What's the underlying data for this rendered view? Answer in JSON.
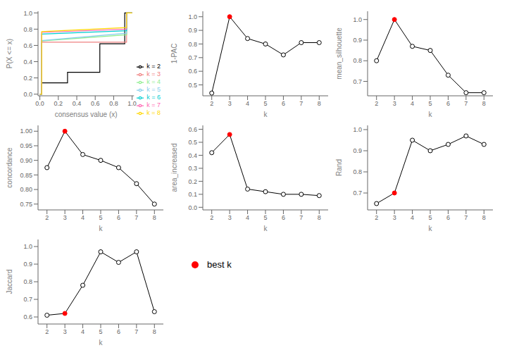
{
  "chart_data": [
    {
      "type": "line",
      "x_label": "consensus value (x)",
      "y_label": "P(X <= x)",
      "xlim": [
        -0.02,
        1.02
      ],
      "ylim": [
        -0.02,
        1.02
      ],
      "xticks": [
        {
          "value": 0,
          "label": "0.0"
        },
        0.2,
        0.4,
        0.6,
        0.8,
        {
          "value": 1,
          "label": "1.0"
        }
      ],
      "yticks": [
        {
          "value": 0,
          "label": "0.0"
        },
        0.2,
        0.4,
        0.6,
        0.8,
        {
          "value": 1,
          "label": "1.0"
        }
      ],
      "grid": false,
      "legend": "lower right",
      "series": [
        {
          "name": "k = 2",
          "color": "#000000",
          "x": [
            0.0,
            0.0,
            0.02,
            0.02,
            0.3,
            0.3,
            0.38,
            0.38,
            0.65,
            0.65,
            0.92,
            0.92,
            1.0,
            1.0
          ],
          "values": [
            0.0,
            0.0,
            0.0,
            0.14,
            0.14,
            0.27,
            0.27,
            0.27,
            0.27,
            0.62,
            0.62,
            1.0,
            1.0,
            1.0
          ]
        },
        {
          "name": "k = 3",
          "color": "#F08080",
          "x": [
            0.0,
            0.02,
            0.02,
            0.94,
            0.94,
            1.0
          ],
          "values": [
            0.0,
            0.0,
            0.64,
            0.64,
            1.0,
            1.0
          ]
        },
        {
          "name": "k = 4",
          "color": "#90EE90",
          "x": [
            0.0,
            0.02,
            0.02,
            0.94,
            0.94,
            1.0
          ],
          "values": [
            0.0,
            0.0,
            0.655,
            0.73,
            1.0,
            1.0
          ]
        },
        {
          "name": "k = 5",
          "color": "#87CEEB",
          "x": [
            0.0,
            0.02,
            0.02,
            0.94,
            0.94,
            1.0
          ],
          "values": [
            0.0,
            0.0,
            0.66,
            0.75,
            1.0,
            1.0
          ]
        },
        {
          "name": "k = 6",
          "color": "#00CED1",
          "x": [
            0.0,
            0.02,
            0.02,
            0.94,
            0.94,
            1.0
          ],
          "values": [
            0.0,
            0.0,
            0.74,
            0.78,
            1.0,
            1.0
          ]
        },
        {
          "name": "k = 7",
          "color": "#FF69B4",
          "x": [
            0.0,
            0.02,
            0.02,
            0.94,
            0.94,
            1.0
          ],
          "values": [
            0.0,
            0.0,
            0.76,
            0.8,
            1.0,
            1.0
          ]
        },
        {
          "name": "k = 8",
          "color": "#FFD700",
          "x": [
            0.0,
            0.02,
            0.02,
            0.94,
            0.94,
            1.0
          ],
          "values": [
            0.0,
            0.0,
            0.77,
            0.82,
            1.0,
            1.0
          ]
        }
      ]
    },
    {
      "type": "line",
      "x_label": "k",
      "y_label": "1-PAC",
      "x": [
        2,
        3,
        4,
        5,
        6,
        7,
        8
      ],
      "values": [
        0.44,
        1.0,
        0.84,
        0.8,
        0.72,
        0.81,
        0.81
      ],
      "color": "#000000",
      "marker": "circle",
      "colors": [
        "#FFFFFF",
        "#FF0000",
        "#FFFFFF",
        "#FFFFFF",
        "#FFFFFF",
        "#FFFFFF",
        "#FFFFFF"
      ],
      "xlim": [
        1.5,
        8.5
      ],
      "xticks": [
        2,
        3,
        4,
        5,
        6,
        7,
        8
      ],
      "ylim": [
        0.42,
        1.04
      ],
      "yticks": [
        0.5,
        0.6,
        0.7,
        0.8,
        0.9,
        {
          "value": 1,
          "label": "1.0"
        }
      ],
      "grid": false
    },
    {
      "type": "line",
      "x_label": "k",
      "y_label": "mean_silhouette",
      "x": [
        2,
        3,
        4,
        5,
        6,
        7,
        8
      ],
      "values": [
        0.8,
        1.0,
        0.87,
        0.85,
        0.73,
        0.645,
        0.645
      ],
      "color": "#000000",
      "marker": "circle",
      "colors": [
        "#FFFFFF",
        "#FF0000",
        "#FFFFFF",
        "#FFFFFF",
        "#FFFFFF",
        "#FFFFFF",
        "#FFFFFF"
      ],
      "xlim": [
        1.5,
        8.5
      ],
      "xticks": [
        2,
        3,
        4,
        5,
        6,
        7,
        8
      ],
      "ylim": [
        0.63,
        1.04
      ],
      "yticks": [
        0.7,
        0.8,
        0.9,
        {
          "value": 1,
          "label": "1.0"
        }
      ],
      "grid": false
    },
    {
      "type": "line",
      "x_label": "k",
      "y_label": "concordance",
      "x": [
        2,
        3,
        4,
        5,
        6,
        7,
        8
      ],
      "values": [
        0.875,
        1.0,
        0.92,
        0.9,
        0.875,
        0.82,
        0.75
      ],
      "color": "#000000",
      "marker": "circle",
      "colors": [
        "#FFFFFF",
        "#FF0000",
        "#FFFFFF",
        "#FFFFFF",
        "#FFFFFF",
        "#FFFFFF",
        "#FFFFFF"
      ],
      "xlim": [
        1.5,
        8.5
      ],
      "xticks": [
        2,
        3,
        4,
        5,
        6,
        7,
        8
      ],
      "ylim": [
        0.73,
        1.02
      ],
      "yticks": [
        0.75,
        {
          "value": 0.8,
          "label": "0.80"
        },
        0.85,
        {
          "value": 0.9,
          "label": "0.90"
        },
        0.95,
        {
          "value": 1,
          "label": "1.00"
        }
      ],
      "grid": false
    },
    {
      "type": "line",
      "x_label": "k",
      "y_label": "area_increased",
      "x": [
        2,
        3,
        4,
        5,
        6,
        7,
        8
      ],
      "values": [
        0.42,
        0.56,
        0.14,
        0.12,
        0.1,
        0.1,
        0.09
      ],
      "color": "#000000",
      "marker": "circle",
      "colors": [
        "#FFFFFF",
        "#FF0000",
        "#FFFFFF",
        "#FFFFFF",
        "#FFFFFF",
        "#FFFFFF",
        "#FFFFFF"
      ],
      "xlim": [
        1.5,
        8.5
      ],
      "xticks": [
        2,
        3,
        4,
        5,
        6,
        7,
        8
      ],
      "ylim": [
        -0.02,
        0.63
      ],
      "yticks": [
        {
          "value": 0,
          "label": "0.0"
        },
        0.1,
        0.2,
        0.3,
        0.4,
        0.5,
        0.6
      ],
      "grid": false
    },
    {
      "type": "line",
      "x_label": "k",
      "y_label": "Rand",
      "x": [
        2,
        3,
        4,
        5,
        6,
        7,
        8
      ],
      "values": [
        0.65,
        0.7,
        0.95,
        0.9,
        0.93,
        0.97,
        0.93
      ],
      "color": "#000000",
      "marker": "circle",
      "colors": [
        "#FFFFFF",
        "#FF0000",
        "#FFFFFF",
        "#FFFFFF",
        "#FFFFFF",
        "#FFFFFF",
        "#FFFFFF"
      ],
      "xlim": [
        1.5,
        8.5
      ],
      "xticks": [
        2,
        3,
        4,
        5,
        6,
        7,
        8
      ],
      "ylim": [
        0.62,
        1.02
      ],
      "yticks": [
        0.7,
        0.8,
        0.9,
        {
          "value": 1,
          "label": "1.0"
        }
      ],
      "grid": false
    },
    {
      "type": "line",
      "x_label": "k",
      "y_label": "Jaccard",
      "x": [
        2,
        3,
        4,
        5,
        6,
        7,
        8
      ],
      "values": [
        0.61,
        0.62,
        0.78,
        0.97,
        0.91,
        0.97,
        0.63
      ],
      "color": "#000000",
      "marker": "circle",
      "colors": [
        "#FFFFFF",
        "#FF0000",
        "#FFFFFF",
        "#FFFFFF",
        "#FFFFFF",
        "#FFFFFF",
        "#FFFFFF"
      ],
      "xlim": [
        1.5,
        8.5
      ],
      "xticks": [
        2,
        3,
        4,
        5,
        6,
        7,
        8
      ],
      "ylim": [
        0.56,
        1.04
      ],
      "yticks": [
        0.6,
        0.7,
        0.8,
        0.9,
        {
          "value": 1,
          "label": "1.0"
        }
      ],
      "grid": false
    },
    {
      "type": "key",
      "annotation": "best k",
      "color": "#FF0000",
      "marker": "circle"
    }
  ]
}
